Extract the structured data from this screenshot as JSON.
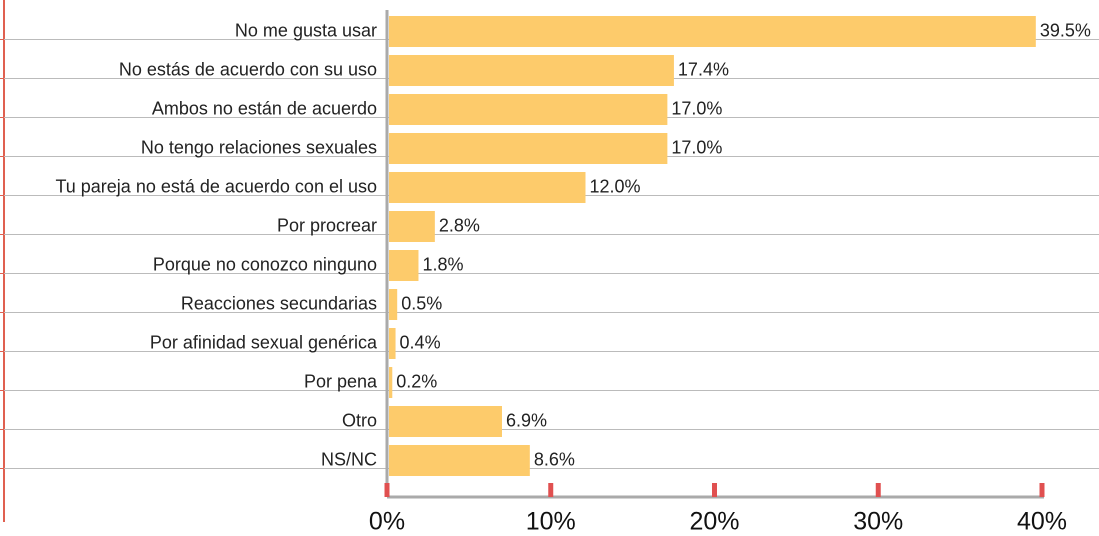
{
  "chart_data": {
    "type": "bar",
    "orientation": "horizontal",
    "color": "#fdcb6b",
    "categories": [
      "No me gusta usar",
      "No estás de acuerdo con su uso",
      "Ambos no están de acuerdo",
      "No tengo relaciones sexuales",
      "Tu pareja no está de acuerdo con el uso",
      "Por procrear",
      "Porque no conozco ninguno",
      "Reacciones secundarias",
      "Por afinidad sexual genérica",
      "Por pena",
      "Otro",
      "NS/NC"
    ],
    "values": [
      39.5,
      17.4,
      17.0,
      17.0,
      12.0,
      2.8,
      1.8,
      0.5,
      0.4,
      0.2,
      6.9,
      8.6
    ],
    "value_labels": [
      "39.5%",
      "17.4%",
      "17.0%",
      "17.0%",
      "12.0%",
      "2.8%",
      "1.8%",
      "0.5%",
      "0.4%",
      "0.2%",
      "6.9%",
      "8.6%"
    ],
    "xlim": [
      0,
      40
    ],
    "xticks": [
      {
        "value": 0,
        "label": "0%"
      },
      {
        "value": 10,
        "label": "10%"
      },
      {
        "value": 20,
        "label": "20%"
      },
      {
        "value": 30,
        "label": "30%"
      },
      {
        "value": 40,
        "label": "40%"
      }
    ],
    "grid": true
  }
}
